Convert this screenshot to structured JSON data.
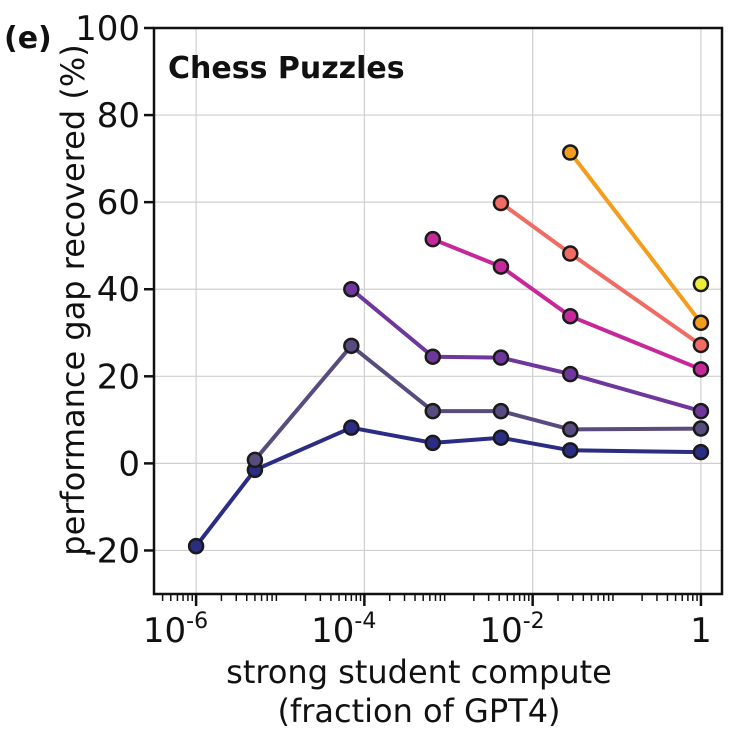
{
  "panel_label": "(e)",
  "chart_data": {
    "type": "line",
    "title": "Chess Puzzles",
    "xlabel": "strong student compute",
    "xlabel_line2": "(fraction of GPT4)",
    "ylabel": "performance gap recovered (%)",
    "xscale": "log",
    "xlim": [
      3.16e-07,
      1.78
    ],
    "ylim": [
      -30,
      100
    ],
    "x_ticks": [
      {
        "value": 1e-06,
        "base": "10",
        "exp": "-6"
      },
      {
        "value": 0.0001,
        "base": "10",
        "exp": "-4"
      },
      {
        "value": 0.01,
        "base": "10",
        "exp": "-2"
      },
      {
        "value": 1,
        "base": "1",
        "exp": ""
      }
    ],
    "y_ticks": [
      -20,
      0,
      20,
      40,
      60,
      80,
      100
    ],
    "y_tick_labels": [
      "-20",
      "0",
      "20",
      "40",
      "60",
      "80",
      "100"
    ],
    "grid": true,
    "series": [
      {
        "color": "#2b2c84",
        "points": [
          [
            1e-06,
            -19
          ],
          [
            5e-06,
            -1.5
          ],
          [
            7e-05,
            8.2
          ],
          [
            0.00065,
            4.7
          ],
          [
            0.0042,
            5.9
          ],
          [
            0.028,
            3.0
          ],
          [
            1,
            2.6
          ]
        ]
      },
      {
        "color": "#584b7d",
        "points": [
          [
            5e-06,
            0.8
          ],
          [
            7e-05,
            27
          ],
          [
            0.00065,
            12
          ],
          [
            0.0042,
            12
          ],
          [
            0.028,
            7.8
          ],
          [
            1,
            8
          ]
        ]
      },
      {
        "color": "#6f379c",
        "points": [
          [
            7e-05,
            40
          ],
          [
            0.00065,
            24.5
          ],
          [
            0.0042,
            24.3
          ],
          [
            0.028,
            20.5
          ],
          [
            1,
            12
          ]
        ]
      },
      {
        "color": "#c6289a",
        "points": [
          [
            0.00065,
            51.5
          ],
          [
            0.0042,
            45.2
          ],
          [
            0.028,
            33.8
          ],
          [
            1,
            21.6
          ]
        ]
      },
      {
        "color": "#ef6b63",
        "points": [
          [
            0.0042,
            59.8
          ],
          [
            0.028,
            48.2
          ],
          [
            1,
            27.2
          ]
        ]
      },
      {
        "color": "#f49d1d",
        "points": [
          [
            0.028,
            71.4
          ],
          [
            1,
            32.3
          ]
        ]
      },
      {
        "color": "#ecec3a",
        "points": [
          [
            1,
            41.2
          ]
        ]
      }
    ]
  }
}
